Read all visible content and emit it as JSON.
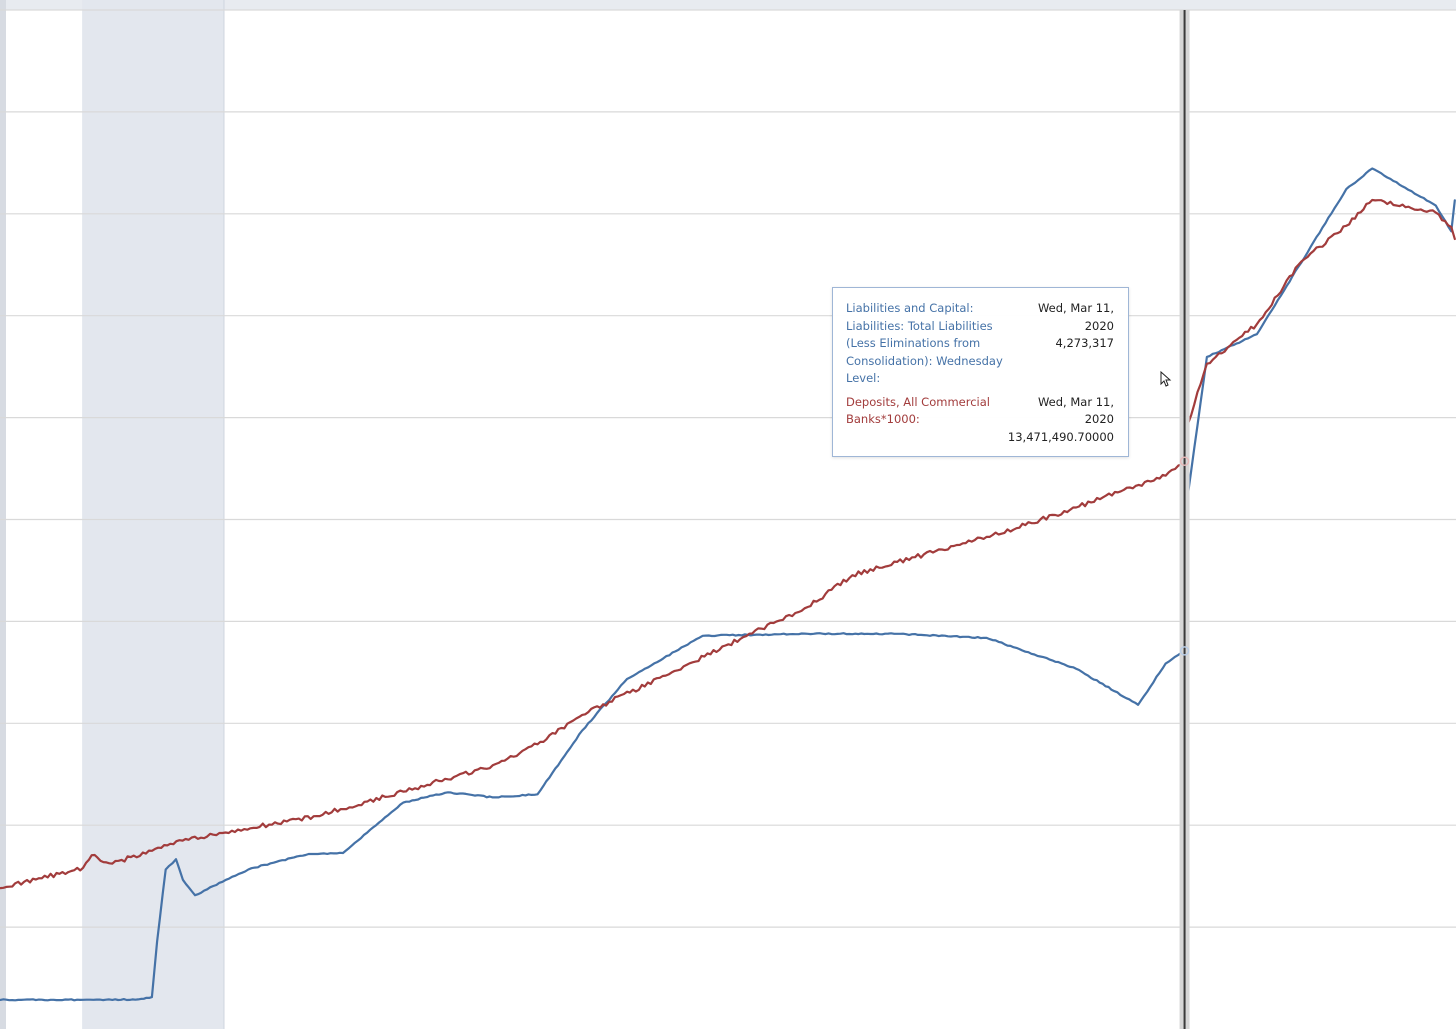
{
  "chart_data": {
    "type": "line",
    "grid": true,
    "recession_shading": true,
    "series": [
      {
        "name": "Liabilities and Capital: Liabilities: Total Liabilities (Less Eliminations from Consolidation): Wednesday Level",
        "color": "#4572a7",
        "axis": "left",
        "points": [
          [
            "2007-01-03",
            883000
          ],
          [
            "2007-12-05",
            884000
          ],
          [
            "2008-01-16",
            884000
          ],
          [
            "2008-04-02",
            883000
          ],
          [
            "2008-07-16",
            888000
          ],
          [
            "2008-09-10",
            910000
          ],
          [
            "2008-10-01",
            1450000
          ],
          [
            "2008-11-05",
            2150000
          ],
          [
            "2008-12-17",
            2250000
          ],
          [
            "2009-01-14",
            2050000
          ],
          [
            "2009-03-04",
            1900000
          ],
          [
            "2009-06-24",
            2030000
          ],
          [
            "2009-07-08",
            2050000
          ],
          [
            "2009-10-07",
            2150000
          ],
          [
            "2010-01-06",
            2210000
          ],
          [
            "2010-06-09",
            2300000
          ],
          [
            "2010-10-27",
            2310000
          ],
          [
            "2011-06-29",
            2800000
          ],
          [
            "2011-12-28",
            2900000
          ],
          [
            "2012-06-27",
            2850000
          ],
          [
            "2012-12-26",
            2880000
          ],
          [
            "2013-06-26",
            3500000
          ],
          [
            "2013-12-25",
            4000000
          ],
          [
            "2014-10-29",
            4420000
          ],
          [
            "2015-12-30",
            4440000
          ],
          [
            "2016-12-28",
            4440000
          ],
          [
            "2017-12-27",
            4400000
          ],
          [
            "2018-12-26",
            4100000
          ],
          [
            "2019-09-04",
            3750000
          ],
          [
            "2019-12-25",
            4150000
          ],
          [
            "2020-03-11",
            4273317
          ],
          [
            "2020-03-25",
            5800000
          ],
          [
            "2020-06-10",
            7130000
          ],
          [
            "2020-12-30",
            7350000
          ],
          [
            "2021-12-29",
            8760000
          ],
          [
            "2022-04-13",
            8960000
          ],
          [
            "2022-12-28",
            8600000
          ],
          [
            "2023-03-01",
            8350000
          ],
          [
            "2023-03-15",
            8650000
          ]
        ]
      },
      {
        "name": "Deposits, All Commercial Banks*1000",
        "color": "#a23c3c",
        "axis": "right",
        "points": [
          [
            "2007-01-03",
            6350000
          ],
          [
            "2007-12-05",
            6690000
          ],
          [
            "2008-01-09",
            6900000
          ],
          [
            "2008-04-02",
            6760000
          ],
          [
            "2008-12-31",
            7150000
          ],
          [
            "2009-06-24",
            7270000
          ],
          [
            "2009-12-30",
            7410000
          ],
          [
            "2010-06-30",
            7550000
          ],
          [
            "2011-06-29",
            7960000
          ],
          [
            "2012-06-27",
            8400000
          ],
          [
            "2012-12-26",
            8750000
          ],
          [
            "2013-06-26",
            9240000
          ],
          [
            "2014-06-25",
            9950000
          ],
          [
            "2015-06-24",
            10680000
          ],
          [
            "2015-12-30",
            11040000
          ],
          [
            "2016-06-29",
            11570000
          ],
          [
            "2017-06-28",
            12000000
          ],
          [
            "2017-12-27",
            12210000
          ],
          [
            "2018-06-27",
            12440000
          ],
          [
            "2018-12-26",
            12700000
          ],
          [
            "2019-06-26",
            12970000
          ],
          [
            "2019-12-25",
            13230000
          ],
          [
            "2020-03-11",
            13471490.7
          ],
          [
            "2020-03-25",
            14100000
          ],
          [
            "2020-06-10",
            15100000
          ],
          [
            "2020-12-30",
            15760000
          ],
          [
            "2021-06-30",
            16810000
          ],
          [
            "2021-12-29",
            17400000
          ],
          [
            "2022-04-13",
            17830000
          ],
          [
            "2022-12-28",
            17620000
          ],
          [
            "2023-03-01",
            17380000
          ],
          [
            "2023-03-15",
            17180000
          ]
        ]
      }
    ],
    "tooltip": {
      "date_iso": "2020-03-11",
      "entries": [
        {
          "series": "blue",
          "label": "Liabilities and Capital: Liabilities: Total Liabilities (Less Eliminations from Consolidation): Wednesday Level:",
          "date": "Wed, Mar 11, 2020",
          "value": "4,273,317"
        },
        {
          "series": "red",
          "label": "Deposits, All Commercial Banks*1000:",
          "date": "Wed, Mar 11, 2020",
          "value": "13,471,490.70000"
        }
      ]
    },
    "recession_band": [
      "2007-12-01",
      "2009-06-30"
    ],
    "view_range": [
      "2007-01-01",
      "2023-03-20"
    ],
    "axes": {
      "left": {
        "range": [
          600000,
          10500000
        ]
      },
      "right": {
        "range": [
          4000000,
          21000000
        ]
      }
    }
  }
}
